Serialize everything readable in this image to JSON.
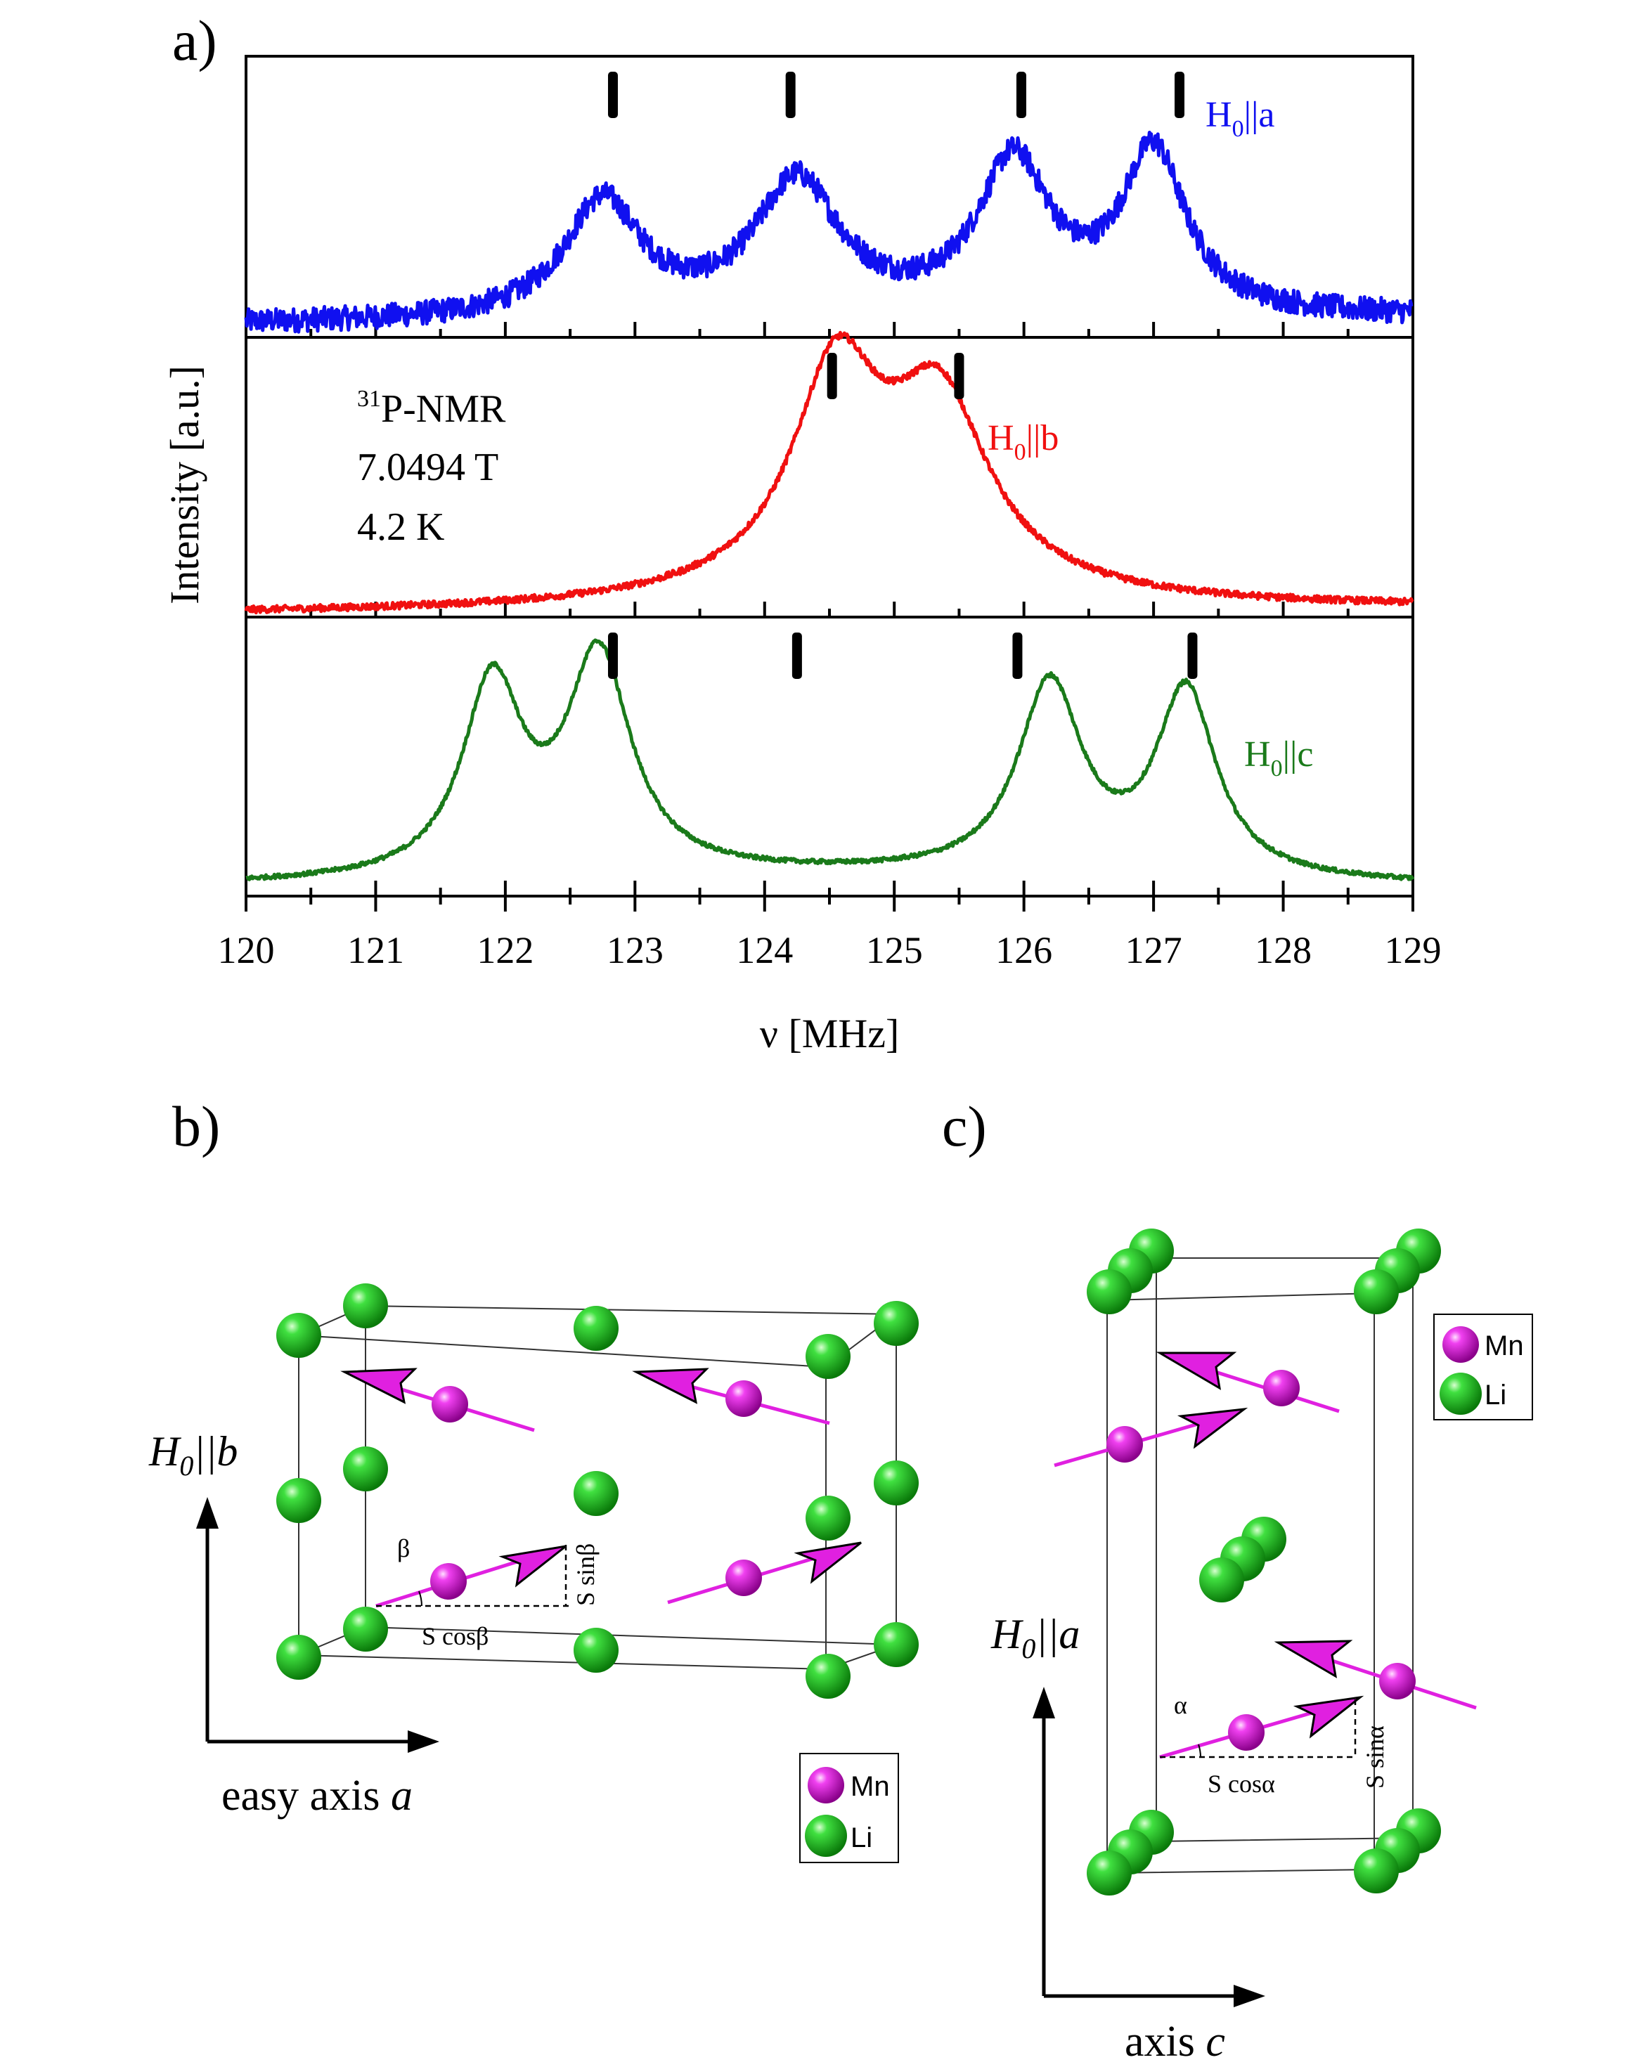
{
  "panel_labels": {
    "a": "a)",
    "b": "b)",
    "c": "c)"
  },
  "chart_data": {
    "type": "line",
    "xlabel": "ν [MHz]",
    "ylabel": "Intensity [a.u.]",
    "xlim": [
      120,
      129
    ],
    "xticks": [
      "120",
      "121",
      "122",
      "123",
      "124",
      "125",
      "126",
      "127",
      "128",
      "129"
    ],
    "annotation": {
      "line1": "P-NMR",
      "line1_sup": "31",
      "line2": "7.0494 T",
      "line3": "4.2 K"
    },
    "panels": [
      {
        "name": "H0||a",
        "legend": {
          "pre": "H",
          "sub": "0",
          "post": "||a"
        },
        "color": "#1010f0",
        "noise": 0.05,
        "baseline": [
          0.05,
          0.08
        ],
        "peaks": [
          {
            "c": 122.75,
            "w": 0.36,
            "h": 0.48
          },
          {
            "c": 124.25,
            "w": 0.4,
            "h": 0.55
          },
          {
            "c": 125.92,
            "w": 0.34,
            "h": 0.62
          },
          {
            "c": 127.0,
            "w": 0.3,
            "h": 0.66
          }
        ],
        "markers": [
          122.83,
          124.2,
          125.98,
          127.2
        ],
        "ylim": [
          0,
          1.15
        ]
      },
      {
        "name": "H0||b",
        "legend": {
          "pre": "H",
          "sub": "0",
          "post": "||b"
        },
        "color": "#f01010",
        "noise": 0.012,
        "baseline": [
          0.01,
          0.03
        ],
        "peaks": [
          {
            "c": 124.55,
            "w": 0.4,
            "h": 0.72
          },
          {
            "c": 125.35,
            "w": 0.45,
            "h": 0.62
          },
          {
            "c": 124.9,
            "w": 1.2,
            "h": 0.12
          }
        ],
        "markers": [
          124.52,
          125.5
        ],
        "ylim": [
          0,
          1.0
        ]
      },
      {
        "name": "H0||c",
        "legend": {
          "pre": "H",
          "sub": "0",
          "post": "||c"
        },
        "color": "#1a7a1a",
        "noise": 0.008,
        "baseline": [
          0.03,
          0.03
        ],
        "peaks": [
          {
            "c": 121.9,
            "w": 0.28,
            "h": 0.72
          },
          {
            "c": 122.72,
            "w": 0.3,
            "h": 0.82
          },
          {
            "c": 126.2,
            "w": 0.3,
            "h": 0.72
          },
          {
            "c": 127.25,
            "w": 0.28,
            "h": 0.7
          },
          {
            "c": 124.5,
            "w": 2.5,
            "h": 0.04
          }
        ],
        "markers": [
          122.83,
          124.25,
          125.95,
          127.3
        ],
        "ylim": [
          0,
          1.05
        ]
      }
    ]
  },
  "diagram_b": {
    "axis_vertical": {
      "pre": "H",
      "sub": "0",
      "post": "||b"
    },
    "axis_horizontal": {
      "text": "easy axis ",
      "italic": "a"
    },
    "angle_label": "β",
    "cos_label": "S cosβ",
    "sin_label": "S sinβ",
    "legend": [
      {
        "label": "Mn",
        "color": "#e020e0"
      },
      {
        "label": "Li",
        "color": "#20c020"
      }
    ]
  },
  "diagram_c": {
    "axis_vertical": {
      "pre": "H",
      "sub": "0",
      "post": "||a"
    },
    "axis_horizontal": {
      "text": "axis ",
      "italic": "c"
    },
    "angle_label": "α",
    "cos_label": "S cosα",
    "sin_label": "S sinα",
    "legend": [
      {
        "label": "Mn",
        "color": "#e020e0"
      },
      {
        "label": "Li",
        "color": "#20c020"
      }
    ]
  }
}
